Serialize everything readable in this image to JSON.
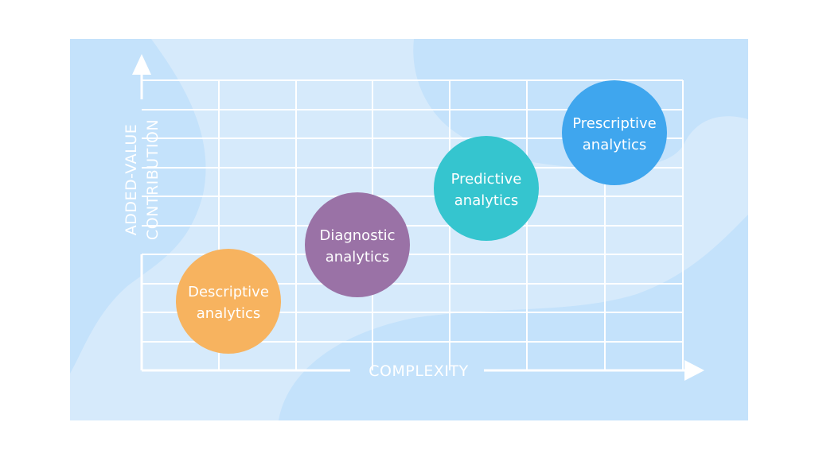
{
  "axes": {
    "y_label_line1": "ADDED-VALUE",
    "y_label_line2": "CONTRIBUTION",
    "x_label": "COMPLEXITY"
  },
  "stages": [
    {
      "line1": "Descriptive",
      "line2": "analytics",
      "color": "#f7b35f"
    },
    {
      "line1": "Diagnostic",
      "line2": "analytics",
      "color": "#9a72a6"
    },
    {
      "line1": "Predictive",
      "line2": "analytics",
      "color": "#35c5cf"
    },
    {
      "line1": "Prescriptive",
      "line2": "analytics",
      "color": "#3fa6ee"
    }
  ],
  "colors": {
    "panel": "#d6eafb",
    "blob": "#bfe0fb",
    "grid": "#ffffff"
  }
}
